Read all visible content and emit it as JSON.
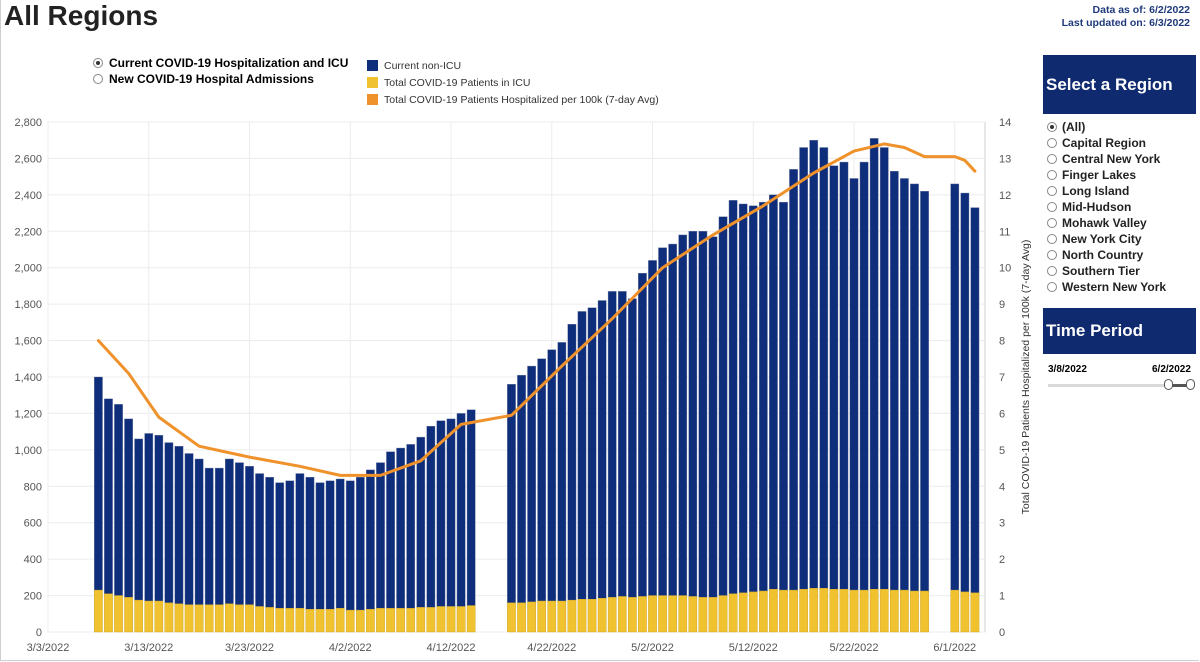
{
  "header": {
    "title": "All Regions",
    "data_as_of": "Data as of: 6/2/2022",
    "last_updated": "Last updated on: 6/3/2022"
  },
  "metric_options": [
    {
      "label": "Current COVID-19 Hospitalization and ICU",
      "selected": true
    },
    {
      "label": "New COVID-19 Hospital Admissions",
      "selected": false
    }
  ],
  "legend": [
    {
      "label": "Current non-ICU",
      "color": "#0e2d7a"
    },
    {
      "label": "Total COVID-19 Patients in ICU",
      "color": "#f0c230"
    },
    {
      "label": "Total COVID-19 Patients Hospitalized per 100k (7-day Avg)",
      "color": "#f0922b"
    }
  ],
  "region_panel": {
    "title": "Select a Region",
    "regions": [
      {
        "label": "(All)",
        "selected": true
      },
      {
        "label": "Capital Region",
        "selected": false
      },
      {
        "label": "Central New York",
        "selected": false
      },
      {
        "label": "Finger Lakes",
        "selected": false
      },
      {
        "label": "Long Island",
        "selected": false
      },
      {
        "label": "Mid-Hudson",
        "selected": false
      },
      {
        "label": "Mohawk Valley",
        "selected": false
      },
      {
        "label": "New York City",
        "selected": false
      },
      {
        "label": "North Country",
        "selected": false
      },
      {
        "label": "Southern Tier",
        "selected": false
      },
      {
        "label": "Western New York",
        "selected": false
      }
    ]
  },
  "time_panel": {
    "title": "Time Period",
    "start": "3/8/2022",
    "end": "6/2/2022"
  },
  "chart_data": {
    "type": "bar",
    "stacked": true,
    "x_start": "3/3/2022",
    "x_end": "6/4/2022",
    "xticks": [
      "3/3/2022",
      "3/13/2022",
      "3/23/2022",
      "4/2/2022",
      "4/12/2022",
      "4/22/2022",
      "5/2/2022",
      "5/12/2022",
      "5/22/2022",
      "6/1/2022"
    ],
    "ylim": [
      0,
      2800
    ],
    "yticks": [
      0,
      200,
      400,
      600,
      800,
      1000,
      1200,
      1400,
      1600,
      1800,
      2000,
      2200,
      2400,
      2600,
      2800
    ],
    "y2label": "Total COVID-19 Patients Hospitalized per 100k (7-day Avg)",
    "y2lim": [
      0,
      14
    ],
    "y2ticks": [
      0,
      1,
      2,
      3,
      4,
      5,
      6,
      7,
      8,
      9,
      10,
      11,
      12,
      13,
      14
    ],
    "grid": true,
    "series": [
      {
        "name": "Current non-ICU",
        "color": "#0e2d7a",
        "stack_total": true,
        "points": [
          [
            "3/8/2022",
            1400
          ],
          [
            "3/9/2022",
            1280
          ],
          [
            "3/10/2022",
            1250
          ],
          [
            "3/11/2022",
            1170
          ],
          [
            "3/12/2022",
            1060
          ],
          [
            "3/13/2022",
            1090
          ],
          [
            "3/14/2022",
            1080
          ],
          [
            "3/15/2022",
            1040
          ],
          [
            "3/16/2022",
            1020
          ],
          [
            "3/17/2022",
            980
          ],
          [
            "3/18/2022",
            950
          ],
          [
            "3/19/2022",
            900
          ],
          [
            "3/20/2022",
            900
          ],
          [
            "3/21/2022",
            950
          ],
          [
            "3/22/2022",
            930
          ],
          [
            "3/23/2022",
            910
          ],
          [
            "3/24/2022",
            870
          ],
          [
            "3/25/2022",
            850
          ],
          [
            "3/26/2022",
            820
          ],
          [
            "3/27/2022",
            830
          ],
          [
            "3/28/2022",
            870
          ],
          [
            "3/29/2022",
            850
          ],
          [
            "3/30/2022",
            820
          ],
          [
            "3/31/2022",
            830
          ],
          [
            "4/1/2022",
            840
          ],
          [
            "4/2/2022",
            830
          ],
          [
            "4/3/2022",
            850
          ],
          [
            "4/4/2022",
            890
          ],
          [
            "4/5/2022",
            930
          ],
          [
            "4/6/2022",
            990
          ],
          [
            "4/7/2022",
            1010
          ],
          [
            "4/8/2022",
            1030
          ],
          [
            "4/9/2022",
            1070
          ],
          [
            "4/10/2022",
            1130
          ],
          [
            "4/11/2022",
            1160
          ],
          [
            "4/12/2022",
            1170
          ],
          [
            "4/13/2022",
            1200
          ],
          [
            "4/14/2022",
            1220
          ],
          [
            "4/18/2022",
            1360
          ],
          [
            "4/19/2022",
            1410
          ],
          [
            "4/20/2022",
            1460
          ],
          [
            "4/21/2022",
            1500
          ],
          [
            "4/22/2022",
            1550
          ],
          [
            "4/23/2022",
            1590
          ],
          [
            "4/24/2022",
            1690
          ],
          [
            "4/25/2022",
            1760
          ],
          [
            "4/26/2022",
            1780
          ],
          [
            "4/27/2022",
            1820
          ],
          [
            "4/28/2022",
            1870
          ],
          [
            "4/29/2022",
            1870
          ],
          [
            "4/30/2022",
            1830
          ],
          [
            "5/1/2022",
            1970
          ],
          [
            "5/2/2022",
            2040
          ],
          [
            "5/3/2022",
            2110
          ],
          [
            "5/4/2022",
            2130
          ],
          [
            "5/5/2022",
            2180
          ],
          [
            "5/6/2022",
            2200
          ],
          [
            "5/7/2022",
            2200
          ],
          [
            "5/8/2022",
            2170
          ],
          [
            "5/9/2022",
            2280
          ],
          [
            "5/10/2022",
            2370
          ],
          [
            "5/11/2022",
            2350
          ],
          [
            "5/12/2022",
            2340
          ],
          [
            "5/13/2022",
            2360
          ],
          [
            "5/14/2022",
            2400
          ],
          [
            "5/15/2022",
            2360
          ],
          [
            "5/16/2022",
            2540
          ],
          [
            "5/17/2022",
            2660
          ],
          [
            "5/18/2022",
            2700
          ],
          [
            "5/19/2022",
            2660
          ],
          [
            "5/20/2022",
            2560
          ],
          [
            "5/21/2022",
            2580
          ],
          [
            "5/22/2022",
            2490
          ],
          [
            "5/23/2022",
            2580
          ],
          [
            "5/24/2022",
            2710
          ],
          [
            "5/25/2022",
            2660
          ],
          [
            "5/26/2022",
            2530
          ],
          [
            "5/27/2022",
            2490
          ],
          [
            "5/28/2022",
            2460
          ],
          [
            "5/29/2022",
            2420
          ],
          [
            "6/1/2022",
            2460
          ],
          [
            "6/2/2022",
            2410
          ],
          [
            "6/3/2022",
            2330
          ]
        ]
      },
      {
        "name": "Total COVID-19 Patients in ICU",
        "color": "#f0c230",
        "points": [
          [
            "3/8/2022",
            230
          ],
          [
            "3/9/2022",
            210
          ],
          [
            "3/10/2022",
            200
          ],
          [
            "3/11/2022",
            190
          ],
          [
            "3/12/2022",
            175
          ],
          [
            "3/13/2022",
            170
          ],
          [
            "3/14/2022",
            170
          ],
          [
            "3/15/2022",
            160
          ],
          [
            "3/16/2022",
            155
          ],
          [
            "3/17/2022",
            150
          ],
          [
            "3/18/2022",
            150
          ],
          [
            "3/19/2022",
            150
          ],
          [
            "3/20/2022",
            150
          ],
          [
            "3/21/2022",
            155
          ],
          [
            "3/22/2022",
            150
          ],
          [
            "3/23/2022",
            150
          ],
          [
            "3/24/2022",
            140
          ],
          [
            "3/25/2022",
            135
          ],
          [
            "3/26/2022",
            130
          ],
          [
            "3/27/2022",
            130
          ],
          [
            "3/28/2022",
            130
          ],
          [
            "3/29/2022",
            125
          ],
          [
            "3/30/2022",
            125
          ],
          [
            "3/31/2022",
            125
          ],
          [
            "4/1/2022",
            130
          ],
          [
            "4/2/2022",
            120
          ],
          [
            "4/3/2022",
            120
          ],
          [
            "4/4/2022",
            125
          ],
          [
            "4/5/2022",
            130
          ],
          [
            "4/6/2022",
            130
          ],
          [
            "4/7/2022",
            130
          ],
          [
            "4/8/2022",
            130
          ],
          [
            "4/9/2022",
            135
          ],
          [
            "4/10/2022",
            135
          ],
          [
            "4/11/2022",
            140
          ],
          [
            "4/12/2022",
            140
          ],
          [
            "4/13/2022",
            140
          ],
          [
            "4/14/2022",
            145
          ],
          [
            "4/18/2022",
            160
          ],
          [
            "4/19/2022",
            160
          ],
          [
            "4/20/2022",
            165
          ],
          [
            "4/21/2022",
            170
          ],
          [
            "4/22/2022",
            170
          ],
          [
            "4/23/2022",
            170
          ],
          [
            "4/24/2022",
            175
          ],
          [
            "4/25/2022",
            180
          ],
          [
            "4/26/2022",
            180
          ],
          [
            "4/27/2022",
            185
          ],
          [
            "4/28/2022",
            190
          ],
          [
            "4/29/2022",
            195
          ],
          [
            "4/30/2022",
            190
          ],
          [
            "5/1/2022",
            195
          ],
          [
            "5/2/2022",
            200
          ],
          [
            "5/3/2022",
            200
          ],
          [
            "5/4/2022",
            200
          ],
          [
            "5/5/2022",
            200
          ],
          [
            "5/6/2022",
            195
          ],
          [
            "5/7/2022",
            190
          ],
          [
            "5/8/2022",
            190
          ],
          [
            "5/9/2022",
            200
          ],
          [
            "5/10/2022",
            210
          ],
          [
            "5/11/2022",
            215
          ],
          [
            "5/12/2022",
            220
          ],
          [
            "5/13/2022",
            225
          ],
          [
            "5/14/2022",
            235
          ],
          [
            "5/15/2022",
            230
          ],
          [
            "5/16/2022",
            230
          ],
          [
            "5/17/2022",
            235
          ],
          [
            "5/18/2022",
            240
          ],
          [
            "5/19/2022",
            240
          ],
          [
            "5/20/2022",
            235
          ],
          [
            "5/21/2022",
            235
          ],
          [
            "5/22/2022",
            230
          ],
          [
            "5/23/2022",
            230
          ],
          [
            "5/24/2022",
            235
          ],
          [
            "5/25/2022",
            235
          ],
          [
            "5/26/2022",
            230
          ],
          [
            "5/27/2022",
            230
          ],
          [
            "5/28/2022",
            225
          ],
          [
            "5/29/2022",
            225
          ],
          [
            "6/1/2022",
            230
          ],
          [
            "6/2/2022",
            220
          ],
          [
            "6/3/2022",
            215
          ]
        ]
      },
      {
        "name": "Total COVID-19 Patients Hospitalized per 100k (7-day Avg)",
        "color": "#f0922b",
        "axis": "y2",
        "points": [
          [
            "3/8/2022",
            8.0
          ],
          [
            "3/11/2022",
            7.1
          ],
          [
            "3/14/2022",
            5.9
          ],
          [
            "3/18/2022",
            5.1
          ],
          [
            "3/23/2022",
            4.8
          ],
          [
            "3/28/2022",
            4.55
          ],
          [
            "4/1/2022",
            4.3
          ],
          [
            "4/5/2022",
            4.3
          ],
          [
            "4/9/2022",
            4.7
          ],
          [
            "4/13/2022",
            5.7
          ],
          [
            "4/18/2022",
            5.95
          ],
          [
            "4/23/2022",
            7.3
          ],
          [
            "4/28/2022",
            8.6
          ],
          [
            "5/3/2022",
            10.0
          ],
          [
            "5/8/2022",
            10.9
          ],
          [
            "5/13/2022",
            11.7
          ],
          [
            "5/18/2022",
            12.6
          ],
          [
            "5/22/2022",
            13.2
          ],
          [
            "5/25/2022",
            13.4
          ],
          [
            "5/27/2022",
            13.3
          ],
          [
            "5/29/2022",
            13.05
          ],
          [
            "6/1/2022",
            13.05
          ],
          [
            "6/2/2022",
            12.95
          ],
          [
            "6/3/2022",
            12.65
          ]
        ]
      }
    ]
  }
}
